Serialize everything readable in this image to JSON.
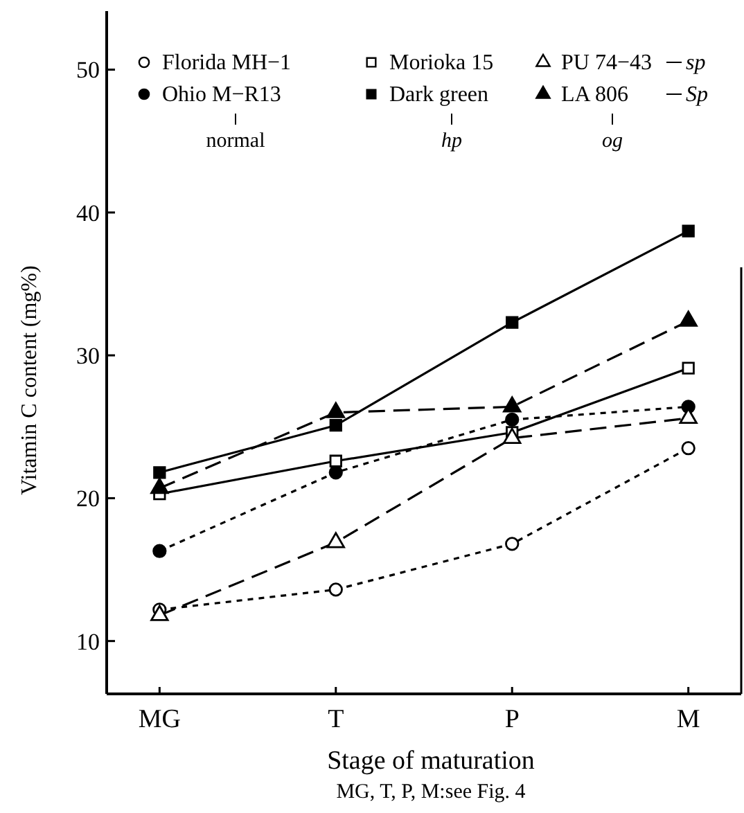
{
  "chart_data": {
    "type": "line",
    "xlabel": "Stage of maturation",
    "ylabel": "Vitamin C content (mg%)",
    "categories": [
      "MG",
      "T",
      "P",
      "M"
    ],
    "ylim": [
      6.3,
      54.1
    ],
    "yticks": [
      10,
      20,
      30,
      40,
      50
    ],
    "legend": "top",
    "series": [
      {
        "name": "Florida MH−1",
        "color": "#000000",
        "marker": "circle",
        "line_style": "dotted",
        "values": [
          12.2,
          13.6,
          16.8,
          23.5
        ]
      },
      {
        "name": "Ohio M−R13",
        "color": "#000000",
        "marker": "circle",
        "line_style": "dotted",
        "values": [
          16.3,
          21.8,
          25.5,
          26.4
        ]
      },
      {
        "name": "Morioka 15",
        "color": "#000000",
        "marker": "square",
        "line_style": "solid",
        "values": [
          20.3,
          22.6,
          24.6,
          29.1
        ]
      },
      {
        "name": "Dark green",
        "color": "#000000",
        "marker": "square",
        "line_style": "solid",
        "values": [
          21.8,
          25.1,
          32.3,
          38.7
        ]
      },
      {
        "name": "PU 74−43",
        "color": "#000000",
        "marker": "triangle",
        "line_style": "dashed",
        "values": [
          11.8,
          16.9,
          24.2,
          25.6
        ]
      },
      {
        "name": "LA 806",
        "color": "#000000",
        "marker": "triangle",
        "line_style": "dashed",
        "values": [
          20.7,
          26.0,
          26.4,
          32.4
        ]
      }
    ],
    "annotations": [
      "sp",
      "Sp",
      "normal",
      "hp",
      "og",
      "MG, T, P, M:see Fig. 4"
    ]
  }
}
